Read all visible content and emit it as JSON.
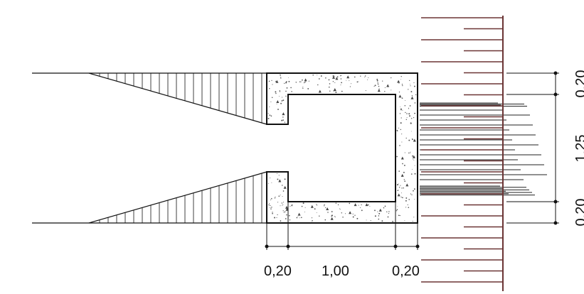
{
  "drawing": {
    "colors": {
      "line": "#111111",
      "ruler": "#6b3535",
      "concrete_dot": "#555555",
      "background": "#ffffff"
    }
  },
  "dimensions": {
    "bottom": [
      "0,20",
      "1,00",
      "0,20"
    ],
    "right": [
      "0,20",
      "1,25",
      "0,20"
    ]
  }
}
